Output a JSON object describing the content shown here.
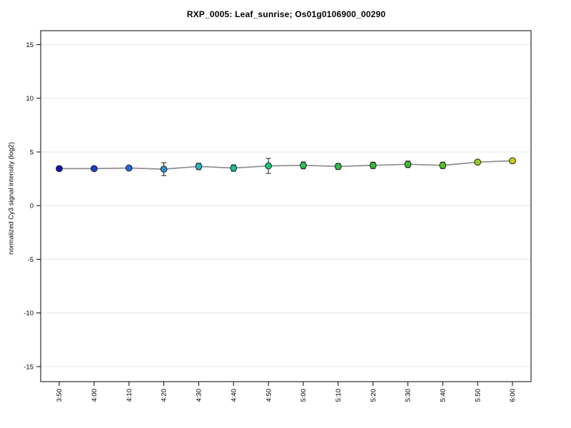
{
  "title": "RXP_0005: Leaf_sunrise; Os01g0106900_00290",
  "chart_data": {
    "type": "line",
    "title": "RXP_0005: Leaf_sunrise; Os01g0106900_00290",
    "xlabel": "",
    "ylabel": "normalized Cy3 signal intensity (log2)",
    "categories": [
      "3:50",
      "4:00",
      "4:10",
      "4:20",
      "4:30",
      "4:40",
      "4:50",
      "5:00",
      "5:10",
      "5:20",
      "5:30",
      "5:40",
      "5:50",
      "6:00"
    ],
    "series": [
      {
        "name": "normalized Cy3 signal intensity (log2)",
        "values": [
          3.45,
          3.45,
          3.5,
          3.4,
          3.65,
          3.5,
          3.7,
          3.75,
          3.65,
          3.75,
          3.85,
          3.75,
          4.05,
          4.18
        ],
        "errors": [
          0.1,
          0.1,
          0.2,
          0.6,
          0.3,
          0.3,
          0.7,
          0.32,
          0.28,
          0.3,
          0.3,
          0.3,
          0.2,
          0.15
        ]
      }
    ],
    "point_colors": [
      "#1212ad",
      "#1d3ecb",
      "#2468d8",
      "#2b8fd2",
      "#2ab3bf",
      "#17bf9b",
      "#1ec377",
      "#26c258",
      "#2cba48",
      "#33b93c",
      "#3ebd33",
      "#55c12b",
      "#9bc922",
      "#cdcd15"
    ],
    "yticks": [
      -15,
      -10,
      -5,
      0,
      5,
      10,
      15
    ],
    "ylim": [
      -16.4,
      16.3
    ],
    "grid": true,
    "legend_position": "none",
    "line_color": "#8c8c8c",
    "grid_color": "#e6e6e6",
    "frame_color": "#3d3d3d",
    "tick_color": "#1a1a1a",
    "error_bar_color": "#2a2a2a",
    "point_edge_color": "#1f1f1f",
    "background_color": "#ffffff"
  }
}
